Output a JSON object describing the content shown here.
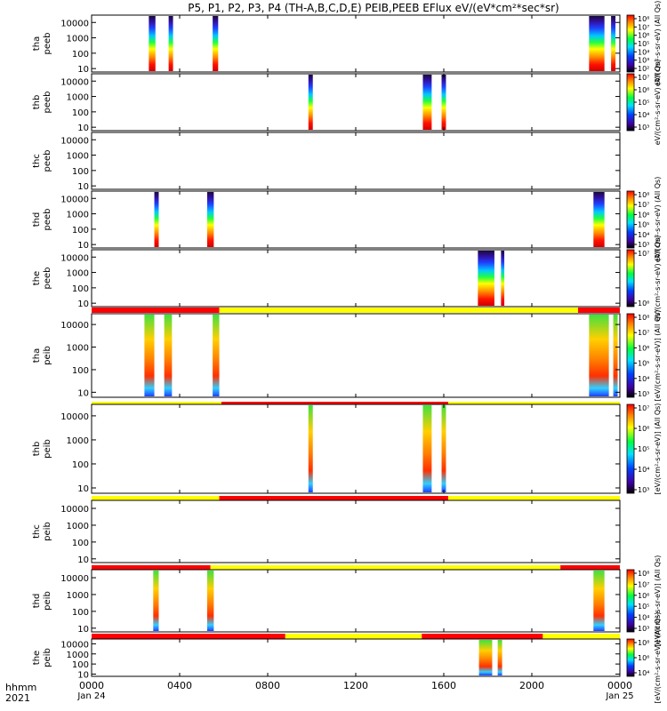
{
  "chart_data": {
    "type": "heatmap",
    "title": "P5, P1, P2, P3, P4 (TH-A,B,C,D,E) PEIB,PEEB EFlux eV/(eV*cm²*sec*sr)",
    "xlabel": "hhmm",
    "xlabel2": "2021",
    "x_range_hours": [
      0,
      24
    ],
    "x_ticks": [
      "0000",
      "0400",
      "0800",
      "1200",
      "1600",
      "2000",
      "0000"
    ],
    "x_ticks_sub": [
      "Jan 24",
      "Jan 25"
    ],
    "y_scale": "log",
    "y_range": [
      6,
      30000
    ],
    "y_ticks": [
      "10000",
      "1000",
      "100",
      "10"
    ],
    "colormap": "rainbow",
    "bar_colors": {
      "red": "#ff0000",
      "yellow": "#ffff00",
      "black": "#000000"
    },
    "cbar_label_electron": "eV/(cm²-s-sr-eV) (All Qs)",
    "cbar_label_ion": "[eV/(cm²-s-sr-eV)] (All Qs)",
    "panels": [
      {
        "label1": "tha",
        "label2": "peeb",
        "cbar": [
          "10⁸",
          "10⁷",
          "10⁶",
          "10⁵",
          "10⁴",
          "10³",
          "10²"
        ],
        "blocks": [
          {
            "x0": 2.6,
            "x1": 2.9
          },
          {
            "x0": 3.5,
            "x1": 3.7
          },
          {
            "x0": 5.5,
            "x1": 5.75
          },
          {
            "x0": 22.6,
            "x1": 23.3
          },
          {
            "x0": 23.6,
            "x1": 23.8
          }
        ]
      },
      {
        "label1": "thb",
        "label2": "peeb",
        "cbar": [
          "10⁷",
          "10⁶",
          "10⁵",
          "10⁴",
          "10³"
        ],
        "blocks": [
          {
            "x0": 9.85,
            "x1": 10.05
          },
          {
            "x0": 15.05,
            "x1": 15.45
          },
          {
            "x0": 15.9,
            "x1": 16.1
          }
        ]
      },
      {
        "label1": "thc",
        "label2": "peeb",
        "cbar": [],
        "blocks": []
      },
      {
        "label1": "thd",
        "label2": "peeb",
        "cbar": [
          "10⁸",
          "10⁷",
          "10⁶",
          "10⁵",
          "10⁴",
          "10³"
        ],
        "blocks": [
          {
            "x0": 2.85,
            "x1": 3.05
          },
          {
            "x0": 5.25,
            "x1": 5.55
          },
          {
            "x0": 22.8,
            "x1": 23.3
          }
        ]
      },
      {
        "label1": "the",
        "label2": "peeb",
        "cbar": [
          "10⁷",
          "10⁶"
        ],
        "blocks": [
          {
            "x0": 17.55,
            "x1": 18.3
          },
          {
            "x0": 18.6,
            "x1": 18.75
          }
        ],
        "status_bar": [
          {
            "x0": 0,
            "x1": 5.8,
            "c": "red"
          },
          {
            "x0": 5.8,
            "x1": 22.1,
            "c": "yellow"
          },
          {
            "x0": 22.1,
            "x1": 24,
            "c": "red"
          }
        ]
      },
      {
        "label1": "tha",
        "label2": "peib",
        "cbar": [
          "10⁸",
          "10⁷",
          "10⁶",
          "10⁵",
          "10⁴",
          "10³"
        ],
        "blocks": [
          {
            "x0": 2.4,
            "x1": 2.85
          },
          {
            "x0": 3.3,
            "x1": 3.65
          },
          {
            "x0": 5.5,
            "x1": 5.8
          },
          {
            "x0": 22.6,
            "x1": 23.5
          },
          {
            "x0": 23.7,
            "x1": 23.9
          }
        ],
        "status_bar": [
          {
            "x0": 0,
            "x1": 5.9,
            "c": "yellow"
          },
          {
            "x0": 5.9,
            "x1": 16.2,
            "c": "red"
          },
          {
            "x0": 16.2,
            "x1": 24,
            "c": "yellow"
          }
        ]
      },
      {
        "label1": "thb",
        "label2": "peib",
        "cbar": [
          "10⁷",
          "10⁶",
          "10⁵",
          "10⁴",
          "10³"
        ],
        "blocks": [
          {
            "x0": 9.85,
            "x1": 10.05
          },
          {
            "x0": 15.05,
            "x1": 15.45
          },
          {
            "x0": 15.9,
            "x1": 16.1
          }
        ],
        "status_bar": [
          {
            "x0": 0,
            "x1": 5.8,
            "c": "yellow"
          },
          {
            "x0": 5.8,
            "x1": 16.2,
            "c": "red"
          },
          {
            "x0": 16.2,
            "x1": 24,
            "c": "yellow"
          }
        ]
      },
      {
        "label1": "thc",
        "label2": "peib",
        "cbar": [],
        "blocks": [],
        "status_bar": [
          {
            "x0": 0,
            "x1": 5.4,
            "c": "red"
          },
          {
            "x0": 5.4,
            "x1": 21.3,
            "c": "yellow"
          },
          {
            "x0": 21.3,
            "x1": 24,
            "c": "red"
          }
        ]
      },
      {
        "label1": "thd",
        "label2": "peib",
        "cbar": [
          "10⁸",
          "10⁷",
          "10⁶",
          "10⁵",
          "10⁴",
          "10³"
        ],
        "blocks": [
          {
            "x0": 2.8,
            "x1": 3.05
          },
          {
            "x0": 5.25,
            "x1": 5.55
          },
          {
            "x0": 22.8,
            "x1": 23.3
          }
        ],
        "status_bar": [
          {
            "x0": 0,
            "x1": 8.8,
            "c": "red"
          },
          {
            "x0": 8.8,
            "x1": 15.0,
            "c": "yellow"
          },
          {
            "x0": 15.0,
            "x1": 20.5,
            "c": "red"
          },
          {
            "x0": 20.5,
            "x1": 24,
            "c": "yellow"
          }
        ]
      },
      {
        "label1": "the",
        "label2": "peib",
        "cbar": [
          "10⁸",
          "10⁶",
          "10⁴"
        ],
        "blocks": [
          {
            "x0": 17.6,
            "x1": 18.2
          },
          {
            "x0": 18.45,
            "x1": 18.65
          }
        ]
      }
    ]
  }
}
